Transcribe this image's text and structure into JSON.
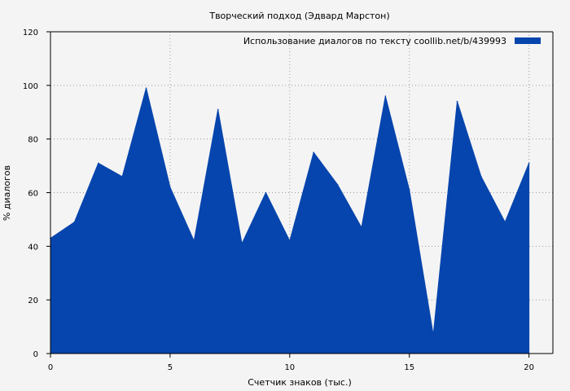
{
  "chart_data": {
    "type": "area",
    "title": "Творческий подход (Эдвард Марстон)",
    "xlabel": "Счетчик знаков (тыс.)",
    "ylabel": "% диалогов",
    "xlim": [
      0,
      21
    ],
    "ylim": [
      0,
      120
    ],
    "xticks": [
      0,
      5,
      10,
      15,
      20
    ],
    "yticks": [
      0,
      20,
      40,
      60,
      80,
      100,
      120
    ],
    "grid": true,
    "legend_position": "top-right",
    "series": [
      {
        "name": "Использование диалогов по тексту  coollib.net/b/439993",
        "color": "#0645ad",
        "x": [
          0,
          1,
          2,
          3,
          4,
          5,
          6,
          7,
          8,
          9,
          10,
          11,
          12,
          13,
          14,
          15,
          16,
          17,
          18,
          19,
          20
        ],
        "values": [
          43,
          49,
          71,
          66,
          99,
          62,
          42,
          91,
          41,
          60,
          42,
          75,
          63,
          47,
          96,
          61,
          7,
          94,
          66,
          49,
          71
        ]
      }
    ]
  }
}
